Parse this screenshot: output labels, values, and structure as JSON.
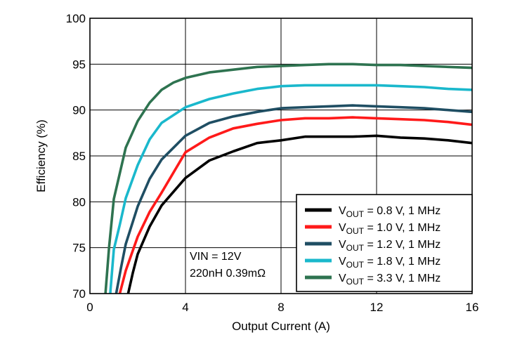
{
  "chart_data": {
    "type": "line",
    "xlabel": "Output Current (A)",
    "ylabel": "Efficiency (%)",
    "xlim": [
      0,
      16
    ],
    "ylim": [
      70,
      100
    ],
    "xticks": [
      0,
      4,
      8,
      12,
      16
    ],
    "yticks": [
      70,
      75,
      80,
      85,
      90,
      95,
      100
    ],
    "grid": true,
    "legend_position": "bottom-right",
    "annotation": [
      "VIN = 12V",
      "220nH 0.39mΩ"
    ],
    "series": [
      {
        "name": "VOUT = 0.8 V, 1 MHz",
        "label_parts": [
          "V",
          "OUT",
          " = 0.8 V, 1 MHz"
        ],
        "color": "#000000",
        "x": [
          1.6,
          1.8,
          2.0,
          2.5,
          3.0,
          4.0,
          5.0,
          6.0,
          7.0,
          8.0,
          9.0,
          10.0,
          11.0,
          12.0,
          13.0,
          14.0,
          15.0,
          16.0
        ],
        "y": [
          70.0,
          72.3,
          74.3,
          77.3,
          79.6,
          82.6,
          84.5,
          85.5,
          86.4,
          86.7,
          87.1,
          87.1,
          87.1,
          87.2,
          87.0,
          86.9,
          86.7,
          86.4
        ]
      },
      {
        "name": "VOUT = 1.0 V, 1 MHz",
        "label_parts": [
          "V",
          "OUT",
          " = 1.0 V, 1 MHz"
        ],
        "color": "#ff1a1a",
        "x": [
          1.25,
          1.5,
          2.0,
          2.5,
          3.0,
          4.0,
          5.0,
          6.0,
          7.0,
          8.0,
          9.0,
          10.0,
          11.0,
          12.0,
          13.0,
          14.0,
          15.0,
          16.0
        ],
        "y": [
          70.0,
          72.5,
          76.2,
          78.9,
          81.0,
          85.4,
          87.0,
          88.0,
          88.5,
          88.9,
          89.1,
          89.1,
          89.2,
          89.1,
          89.0,
          88.9,
          88.7,
          88.4
        ]
      },
      {
        "name": "VOUT = 1.2 V, 1 MHz",
        "label_parts": [
          "V",
          "OUT",
          " = 1.2 V, 1 MHz"
        ],
        "color": "#1f4e63",
        "x": [
          1.1,
          1.3,
          1.5,
          2.0,
          2.5,
          3.0,
          4.0,
          5.0,
          6.0,
          7.0,
          8.0,
          9.0,
          10.0,
          11.0,
          12.0,
          13.0,
          14.0,
          15.0,
          16.0
        ],
        "y": [
          70.0,
          72.8,
          75.4,
          79.5,
          82.5,
          84.6,
          87.2,
          88.6,
          89.3,
          89.8,
          90.2,
          90.3,
          90.4,
          90.5,
          90.4,
          90.3,
          90.2,
          90.0,
          89.8
        ]
      },
      {
        "name": "VOUT = 1.8 V, 1 MHz",
        "label_parts": [
          "V",
          "OUT",
          " = 1.8 V, 1 MHz"
        ],
        "color": "#1ab8cc",
        "x": [
          0.85,
          1.0,
          1.25,
          1.5,
          2.0,
          2.5,
          3.0,
          4.0,
          5.0,
          6.0,
          7.0,
          8.0,
          9.0,
          10.0,
          11.0,
          12.0,
          13.0,
          14.0,
          15.0,
          16.0
        ],
        "y": [
          70.0,
          74.8,
          77.5,
          80.4,
          84.0,
          86.8,
          88.6,
          90.3,
          91.2,
          91.8,
          92.3,
          92.6,
          92.7,
          92.7,
          92.7,
          92.7,
          92.6,
          92.5,
          92.3,
          92.2
        ]
      },
      {
        "name": "VOUT = 3.3 V, 1 MHz",
        "label_parts": [
          "V",
          "OUT",
          " = 3.3 V, 1 MHz"
        ],
        "color": "#2e7350",
        "x": [
          0.65,
          0.8,
          1.0,
          1.5,
          2.0,
          2.5,
          3.0,
          3.5,
          4.0,
          5.0,
          6.0,
          7.0,
          8.0,
          9.0,
          10.0,
          11.0,
          12.0,
          13.0,
          14.0,
          15.0,
          16.0
        ],
        "y": [
          70.0,
          75.0,
          80.3,
          85.9,
          88.8,
          90.8,
          92.2,
          93.0,
          93.5,
          94.1,
          94.4,
          94.7,
          94.8,
          94.9,
          95.0,
          95.0,
          94.9,
          94.9,
          94.8,
          94.7,
          94.6
        ]
      }
    ]
  }
}
